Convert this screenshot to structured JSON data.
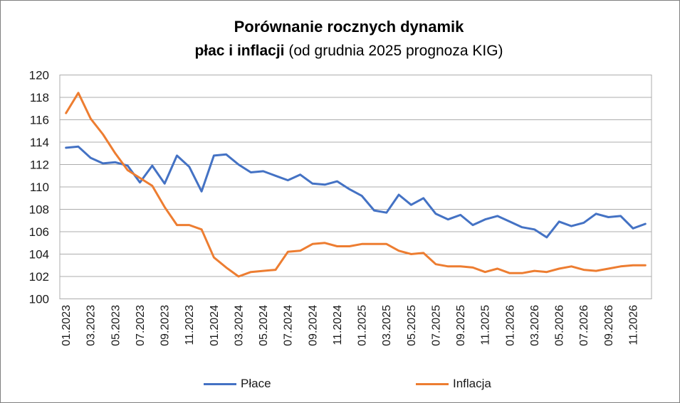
{
  "title": {
    "line1": "Porównanie rocznych dynamik",
    "line2_bold": "płac i inflacji",
    "line2_rest": " (od grudnia 2025 prognoza KIG)"
  },
  "chart_data": {
    "type": "line",
    "title": "Porównanie rocznych dynamik płac i inflacji (od grudnia 2025 prognoza KIG)",
    "xlabel": "",
    "ylabel": "",
    "ylim": [
      100,
      120
    ],
    "y_ticks": [
      100,
      102,
      104,
      106,
      108,
      110,
      112,
      114,
      116,
      118,
      120
    ],
    "grid": "horizontal",
    "legend_position": "bottom",
    "x_ticks_shown_every": 2,
    "categories": [
      "01.2023",
      "02.2023",
      "03.2023",
      "04.2023",
      "05.2023",
      "06.2023",
      "07.2023",
      "08.2023",
      "09.2023",
      "10.2023",
      "11.2023",
      "12.2023",
      "01.2024",
      "02.2024",
      "03.2024",
      "04.2024",
      "05.2024",
      "06.2024",
      "07.2024",
      "08.2024",
      "09.2024",
      "10.2024",
      "11.2024",
      "12.2024",
      "01.2025",
      "02.2025",
      "03.2025",
      "04.2025",
      "05.2025",
      "06.2025",
      "07.2025",
      "08.2025",
      "09.2025",
      "10.2025",
      "11.2025",
      "12.2025",
      "01.2026",
      "02.2026",
      "03.2026",
      "04.2026",
      "05.2026",
      "06.2026",
      "07.2026",
      "08.2026",
      "09.2026",
      "10.2026",
      "11.2026",
      "12.2026"
    ],
    "series": [
      {
        "name": "Płace",
        "color": "#4472C4",
        "values": [
          113.5,
          113.6,
          112.6,
          112.1,
          112.2,
          111.9,
          110.4,
          111.9,
          110.3,
          112.8,
          111.8,
          109.6,
          112.8,
          112.9,
          112.0,
          111.3,
          111.4,
          111.0,
          110.6,
          111.1,
          110.3,
          110.2,
          110.5,
          109.8,
          109.2,
          107.9,
          107.7,
          109.3,
          108.4,
          109.0,
          107.6,
          107.1,
          107.5,
          106.6,
          107.1,
          107.4,
          106.9,
          106.4,
          106.2,
          105.5,
          106.9,
          106.5,
          106.8,
          107.6,
          107.3,
          107.4,
          106.3,
          106.7
        ]
      },
      {
        "name": "Inflacja",
        "color": "#ED7D31",
        "values": [
          116.6,
          118.4,
          116.1,
          114.7,
          113.0,
          111.5,
          110.8,
          110.1,
          108.2,
          106.6,
          106.6,
          106.2,
          103.7,
          102.8,
          102.0,
          102.4,
          102.5,
          102.6,
          104.2,
          104.3,
          104.9,
          105.0,
          104.7,
          104.7,
          104.9,
          104.9,
          104.9,
          104.3,
          104.0,
          104.1,
          103.1,
          102.9,
          102.9,
          102.8,
          102.4,
          102.7,
          102.3,
          102.3,
          102.5,
          102.4,
          102.7,
          102.9,
          102.6,
          102.5,
          102.7,
          102.9,
          103.0,
          103.0
        ]
      }
    ],
    "annotation": "od grudnia 2025 prognoza KIG"
  },
  "colors": {
    "series_place": "#4472C4",
    "series_inflacja": "#ED7D31",
    "gridline": "#ACACAC",
    "plot_border": "#ACACAC",
    "text": "#1a1a1a",
    "canvas_border": "#808080",
    "background": "#ffffff"
  }
}
